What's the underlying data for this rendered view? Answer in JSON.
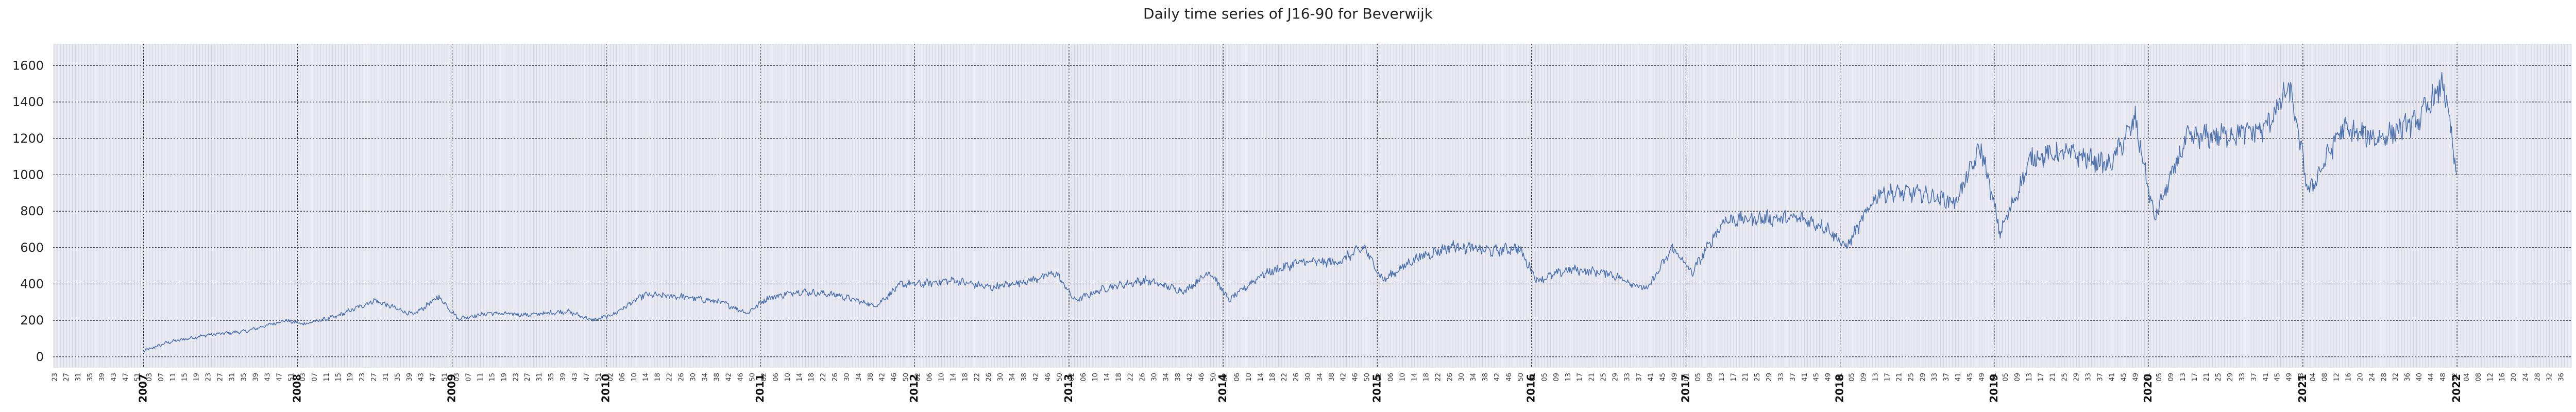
{
  "chart_data": {
    "type": "line",
    "title": "Daily time series of J16-90 for Beverwijk",
    "xlabel": "",
    "ylabel": "",
    "ylim": [
      -60,
      1720
    ],
    "yticks": [
      0,
      200,
      400,
      600,
      800,
      1000,
      1200,
      1400,
      1600
    ],
    "xlim": [
      "2006-06-01",
      "2022-09-30"
    ],
    "x_major_ticks": [
      "2007",
      "2008",
      "2009",
      "2010",
      "2011",
      "2012",
      "2013",
      "2014",
      "2015",
      "2016",
      "2017",
      "2018",
      "2019",
      "2020",
      "2021",
      "2022"
    ],
    "x_minor_tick_format": "ISO week number",
    "grid": true,
    "legend": "none",
    "line_color": "#4c72b0",
    "background_color": "#eaeaf2",
    "series": [
      {
        "x": [
          "2007-01-01",
          "2007-03-01",
          "2007-06-01",
          "2007-09-01",
          "2007-12-01",
          "2008-01-15",
          "2008-04-01",
          "2008-07-01",
          "2008-10-01",
          "2008-12-01",
          "2009-01-15",
          "2009-04-01",
          "2009-07-01",
          "2009-10-01",
          "2009-12-01",
          "2010-01-15",
          "2010-04-01",
          "2010-07-01",
          "2010-10-01",
          "2010-12-01",
          "2011-01-15",
          "2011-04-01",
          "2011-07-01",
          "2011-10-01",
          "2011-12-01",
          "2012-01-15",
          "2012-04-01",
          "2012-07-01",
          "2012-10-01",
          "2012-12-01",
          "2013-01-15",
          "2013-04-01",
          "2013-07-01",
          "2013-10-01",
          "2013-12-01",
          "2014-01-15",
          "2014-04-01",
          "2014-07-01",
          "2014-10-01",
          "2014-12-01",
          "2015-01-15",
          "2015-04-01",
          "2015-07-01",
          "2015-10-01",
          "2015-12-01",
          "2016-01-15",
          "2016-04-01",
          "2016-07-01",
          "2016-10-01",
          "2016-12-01",
          "2017-01-15",
          "2017-04-01",
          "2017-07-01",
          "2017-10-01",
          "2017-12-01",
          "2018-01-15",
          "2018-04-01",
          "2018-07-01",
          "2018-10-01",
          "2018-12-01",
          "2019-01-15",
          "2019-04-01",
          "2019-07-01",
          "2019-10-01",
          "2019-12-01",
          "2020-01-15",
          "2020-04-01",
          "2020-07-01",
          "2020-10-01",
          "2020-12-01",
          "2021-01-15",
          "2021-04-01",
          "2021-07-01",
          "2021-10-01",
          "2021-12-01",
          "2021-12-31"
        ],
        "values": [
          30,
          80,
          120,
          140,
          200,
          180,
          220,
          310,
          230,
          330,
          210,
          240,
          230,
          250,
          200,
          230,
          340,
          330,
          300,
          240,
          320,
          360,
          340,
          280,
          400,
          400,
          420,
          380,
          420,
          460,
          310,
          380,
          420,
          360,
          470,
          310,
          450,
          520,
          520,
          600,
          420,
          540,
          610,
          580,
          600,
          420,
          480,
          460,
          370,
          600,
          460,
          750,
          760,
          760,
          710,
          600,
          900,
          900,
          850,
          1150,
          680,
          1100,
          1120,
          1050,
          1300,
          760,
          1200,
          1220,
          1250,
          1480,
          900,
          1250,
          1200,
          1300,
          1500,
          1000
        ]
      }
    ]
  }
}
